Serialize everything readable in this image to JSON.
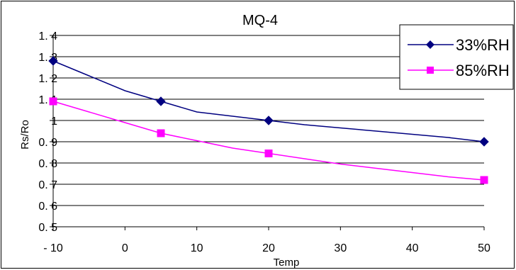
{
  "chart_data": {
    "type": "line",
    "title": "MQ-4",
    "xlabel": "Temp",
    "ylabel": "Rs/Ro",
    "xlim": [
      -10,
      50
    ],
    "ylim": [
      0.5,
      1.4
    ],
    "x_ticks": [
      "- 10",
      "0",
      "10",
      "20",
      "30",
      "40",
      "50"
    ],
    "y_ticks": [
      "0. 5",
      "0. 6",
      "0. 7",
      "0. 8",
      "0. 9",
      "1",
      "1. 1",
      "1. 2",
      "1. 3",
      "1. 4"
    ],
    "grid": true,
    "legend_position": "top-right",
    "series": [
      {
        "name": "33%RH",
        "color": "#000080",
        "marker": "diamond",
        "points": [
          [
            -10,
            1.28
          ],
          [
            5,
            1.09
          ],
          [
            20,
            1.0
          ],
          [
            50,
            0.9
          ]
        ],
        "curve": [
          [
            -10,
            1.28
          ],
          [
            -5,
            1.21
          ],
          [
            0,
            1.14
          ],
          [
            5,
            1.09
          ],
          [
            10,
            1.04
          ],
          [
            15,
            1.02
          ],
          [
            20,
            1.0
          ],
          [
            25,
            0.98
          ],
          [
            30,
            0.965
          ],
          [
            35,
            0.95
          ],
          [
            40,
            0.935
          ],
          [
            45,
            0.92
          ],
          [
            50,
            0.9
          ]
        ]
      },
      {
        "name": "85%RH",
        "color": "#ff00ff",
        "marker": "square",
        "points": [
          [
            -10,
            1.09
          ],
          [
            5,
            0.94
          ],
          [
            20,
            0.845
          ],
          [
            50,
            0.72
          ]
        ],
        "curve": [
          [
            -10,
            1.09
          ],
          [
            -5,
            1.04
          ],
          [
            0,
            0.99
          ],
          [
            5,
            0.94
          ],
          [
            10,
            0.905
          ],
          [
            15,
            0.87
          ],
          [
            20,
            0.845
          ],
          [
            25,
            0.82
          ],
          [
            30,
            0.795
          ],
          [
            35,
            0.775
          ],
          [
            40,
            0.755
          ],
          [
            45,
            0.735
          ],
          [
            50,
            0.72
          ]
        ]
      }
    ]
  }
}
